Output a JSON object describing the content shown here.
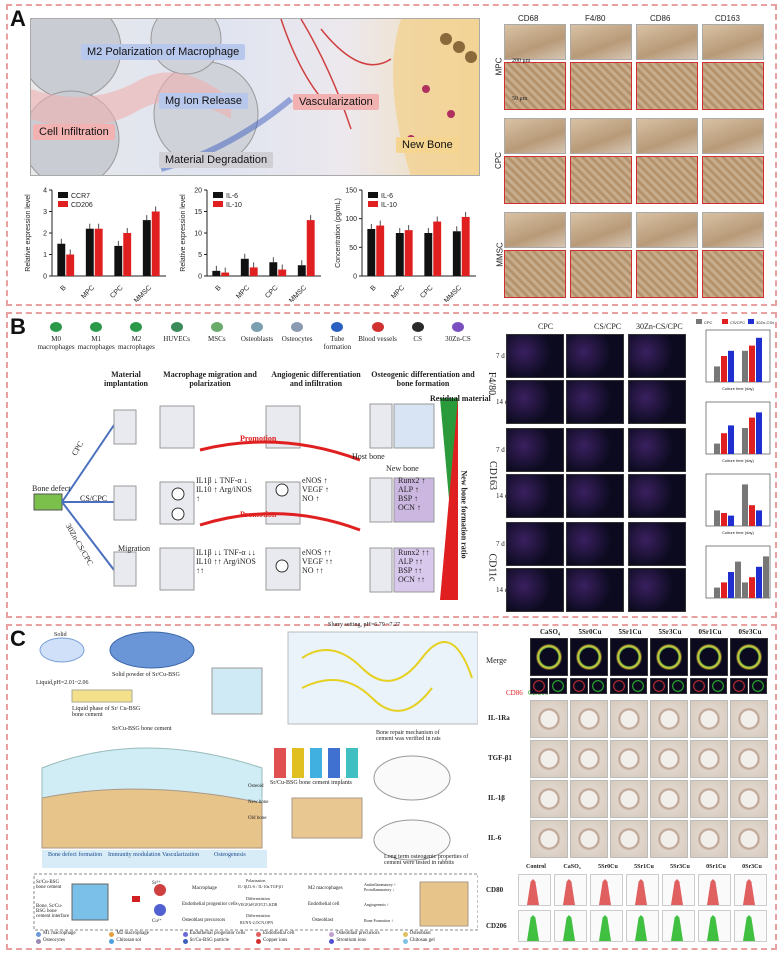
{
  "panels": {
    "A": {
      "label": "A"
    },
    "B": {
      "label": "B"
    },
    "C": {
      "label": "C"
    }
  },
  "panelA": {
    "schematic_tags": {
      "m2": "M2 Polarization of Macrophage",
      "mg": "Mg Ion Release",
      "vasc": "Vascularization",
      "infil": "Cell Infiltration",
      "degr": "Material Degradation",
      "newbone": "New Bone"
    },
    "ihc_cols": [
      "CD68",
      "F4/80",
      "CD86",
      "CD163"
    ],
    "ihc_rows": [
      "MPC",
      "CPC",
      "MMSC"
    ],
    "scale_big": "200 μm",
    "scale_small": "50 μm"
  },
  "chart_data": [
    {
      "type": "bar",
      "categories": [
        "B",
        "MPC",
        "CPC",
        "MMSC"
      ],
      "ylabel": "Relative expression level",
      "ylim": [
        0,
        4
      ],
      "yticks": [
        "0",
        "1",
        "2",
        "3",
        "4"
      ],
      "series": [
        {
          "name": "CCR7",
          "color": "#111111",
          "values": [
            1.5,
            2.2,
            1.4,
            2.6
          ]
        },
        {
          "name": "CD206",
          "color": "#e02020",
          "values": [
            1.0,
            2.2,
            2.0,
            3.0
          ]
        }
      ]
    },
    {
      "type": "bar",
      "categories": [
        "B",
        "MPC",
        "CPC",
        "MMSC"
      ],
      "ylabel": "Relative expression level",
      "ylim": [
        0,
        20
      ],
      "yticks": [
        "0",
        "5",
        "10",
        "15",
        "20"
      ],
      "series": [
        {
          "name": "IL-6",
          "color": "#111111",
          "values": [
            1.2,
            4.0,
            3.2,
            2.5
          ]
        },
        {
          "name": "IL-10",
          "color": "#e02020",
          "values": [
            0.8,
            2.0,
            1.5,
            13.0
          ]
        }
      ]
    },
    {
      "type": "bar",
      "categories": [
        "B",
        "MPC",
        "CPC",
        "MMSC"
      ],
      "ylabel": "Concentration (pg/mL)",
      "ylim": [
        0,
        150
      ],
      "yticks": [
        "0",
        "50",
        "100",
        "150"
      ],
      "series": [
        {
          "name": "IL-6",
          "color": "#111111",
          "values": [
            82,
            75,
            75,
            78
          ]
        },
        {
          "name": "IL-10",
          "color": "#e02020",
          "values": [
            88,
            80,
            95,
            103
          ]
        }
      ]
    }
  ],
  "panelB": {
    "legend": [
      "M0 macrophages",
      "M1 macrophages",
      "M2 macrophages",
      "HUVECs",
      "MSCs",
      "Osteoblasts",
      "Osteocytes",
      "Tube formation",
      "Blood vessels",
      "CS",
      "30Zn-CS"
    ],
    "stages": [
      "Material implantation",
      "Macrophage migration and polarization",
      "Angiogenic differentiation and infiltration",
      "Osteogenic differentiation and bone formation"
    ],
    "bone_defect": "Bone defect",
    "groups": [
      "CPC",
      "CS/CPC",
      "30Zn-CS/CPC"
    ],
    "residual": "Residual material",
    "newbone_ratio": "New bone formation ratio",
    "host_bone": "Host bone",
    "new_bone": "New bone",
    "migration": "Migration",
    "promotion": "Promotion",
    "rows": [
      {
        "factors1": "",
        "factors2": "",
        "factors3": ""
      },
      {
        "factors1": "IL1β ↓ TNF-α ↓ IL10 ↑ Arg/iNOS ↑",
        "factors2": "eNOS ↑ VEGF ↑ NO ↑",
        "factors3": "Runx2 ↑ ALP ↑ BSP ↑ OCN ↑"
      },
      {
        "factors1": "IL1β ↓↓ TNF-α ↓↓ IL10 ↑↑ Arg/iNOS ↑↑",
        "factors2": "eNOS ↑↑ VEGF ↑↑ NO ↑↑",
        "factors3": "Runx2 ↑↑ ALP ↑↑ BSP ↑↑ OCN ↑↑"
      }
    ],
    "fluo_cols": [
      "CPC",
      "CS/CPC",
      "30Zn-CS/CPC"
    ],
    "fluo_rows": [
      "F4/80",
      "CD163",
      "CD11c"
    ],
    "days": [
      "7 d",
      "14 d"
    ],
    "side_legend": [
      "CPC",
      "CS/CPC",
      "30Zn-CS/CPC"
    ],
    "side_xlabel": "Culture time (day)"
  },
  "panelC": {
    "solid": "Solid",
    "solid_desc": "Solid powder of Sr/Cu-BSG",
    "liquid": "Liquid,pH=2.01~2.06",
    "liquid_desc": "Liquid phase of Sr/ Cu-BSG bone cement",
    "slurry": "Slurry setting, pH=6.79 ~7.27",
    "cement": "Sr/Cu-BSG bone cement",
    "implants": "Sr/Cu-BSG bone cement implants",
    "mech_rats": "Bone repair mechanism of cement was verified in rats",
    "mech_rabbits": "Long term osteogenic properties of cement were tested in rabbits",
    "bone_labels": [
      "Osteoid",
      "New bone",
      "Old bone"
    ],
    "process": [
      "Bone defect formation",
      "Immunity modulation",
      "Vascularization",
      "Osteogenesis"
    ],
    "mech_left": "Sr/Cu-BSG bone cement",
    "mech_interface": "Bone, Sr/Cu-BSG bone cement interface",
    "mech_cells": [
      "Macrophage",
      "M2 macrophages",
      "Endothelial progenitor cells",
      "Endothelial cell",
      "Osteoblast precursors",
      "Osteoblast"
    ],
    "mech_steps": [
      "Polarization",
      "IL-1β,IL-6 / IL-10a,TGF-β1",
      "Differentiation",
      "VEGF,bFGF,FLT1,KDR",
      "Differentiation",
      "RUNX-2,OCN,OPN"
    ],
    "mech_results": [
      "Antiinflammatory ↑ Proinflammatory ↓",
      "Angiogenesis ↑",
      "Bone Formation ↑"
    ],
    "ions": [
      "Sr²⁺",
      "Cu²⁺"
    ],
    "legend": [
      "M1 macrophage",
      "M2 macrophage",
      "Endothelial progenitor cells",
      "Endothelial cell",
      "Osteoblast precursors",
      "Osteoblast",
      "Osteocytes",
      "Chitosan sol",
      "Sr/Cu-BSG particle",
      "Copper ions",
      "Strontium ions",
      "Chitosan gel"
    ],
    "ihc_cols": [
      "CaSO₄",
      "5Sr0Cu",
      "5Sr1Cu",
      "5Sr3Cu",
      "0Sr1Cu",
      "0Sr3Cu"
    ],
    "merge_label": "Merge",
    "cd86": "CD86",
    "cd206": "CD206",
    "ihc_rows": [
      "IL-1Ra",
      "TGF-β1",
      "IL-1β",
      "IL-6"
    ],
    "flow_cols": [
      "Control",
      "CaSO₄",
      "5Sr0Cu",
      "5Sr1Cu",
      "5Sr3Cu",
      "0Sr1Cu",
      "0Sr3Cu"
    ],
    "flow_rows": [
      "CD80",
      "CD206"
    ]
  }
}
